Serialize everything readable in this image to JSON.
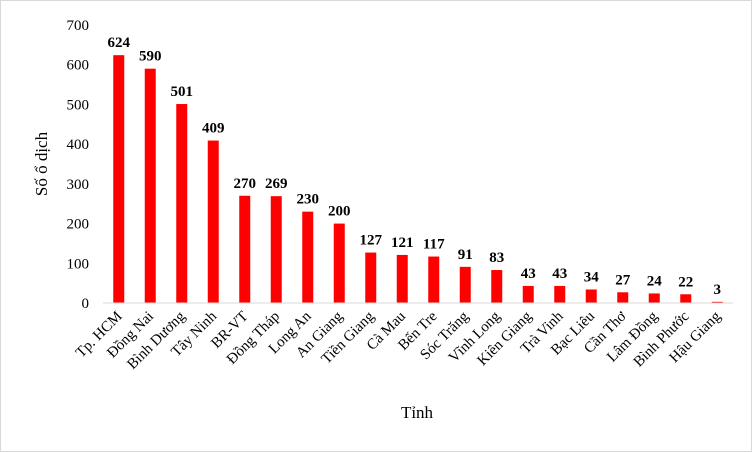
{
  "chart_data": {
    "type": "bar",
    "categories": [
      "Tp. HCM",
      "Đồng Nai",
      "Bình Dương",
      "Tây Ninh",
      "BR-VT",
      "Đồng Tháp",
      "Long An",
      "An Giang",
      "Tiền Giang",
      "Cà Mau",
      "Bến Tre",
      "Sóc Trăng",
      "Vĩnh Long",
      "Kiên Giang",
      "Trà Vinh",
      "Bạc Liêu",
      "Cần Thơ",
      "Lâm Đồng",
      "Bình Phước",
      "Hậu Giang"
    ],
    "values": [
      624,
      590,
      501,
      409,
      270,
      269,
      230,
      200,
      127,
      121,
      117,
      91,
      83,
      43,
      43,
      34,
      27,
      24,
      22,
      3
    ],
    "data_labels": [
      "624",
      "590",
      "501",
      "409",
      "270",
      "269",
      "230",
      "200",
      "127",
      "121",
      "117",
      "91",
      "83",
      "43",
      "43",
      "34",
      "27",
      "24",
      "22",
      "3"
    ],
    "xlabel": "Tỉnh",
    "ylabel": "Số ổ dịch",
    "ylim": [
      0,
      700
    ],
    "yticks": [
      "0",
      "100",
      "200",
      "300",
      "400",
      "500",
      "600",
      "700"
    ],
    "grid": false,
    "legend": "none",
    "bar_color": "#ff0000"
  }
}
